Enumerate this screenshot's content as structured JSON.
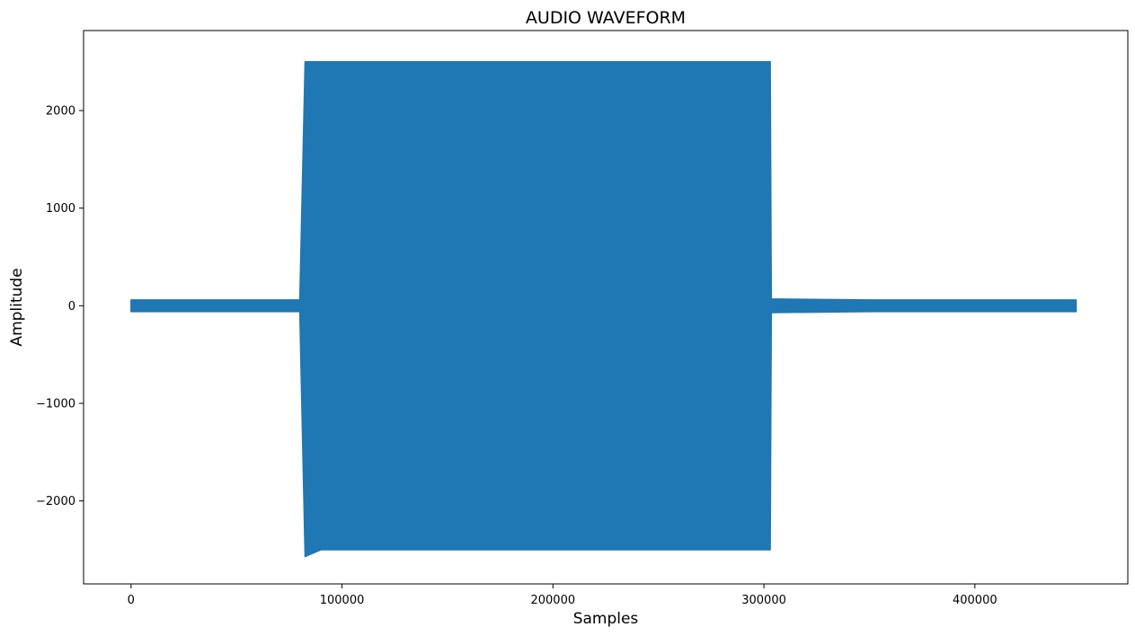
{
  "chart_data": {
    "type": "area",
    "title": "AUDIO WAVEFORM",
    "xlabel": "Samples",
    "ylabel": "Amplitude",
    "xlim": [
      -22500,
      472500
    ],
    "ylim": [
      -2850,
      2820
    ],
    "xticks": [
      0,
      100000,
      200000,
      300000,
      400000
    ],
    "xtick_labels": [
      "0",
      "100000",
      "200000",
      "300000",
      "400000"
    ],
    "yticks": [
      -2000,
      -1000,
      0,
      1000,
      2000
    ],
    "ytick_labels": [
      "−2000",
      "−1000",
      "0",
      "1000",
      "2000"
    ],
    "grid": false,
    "legend": "none",
    "series": [
      {
        "color": "#1f77b4",
        "envelope": {
          "x": [
            0,
            80000,
            82500,
            90000,
            150000,
            250000,
            303000,
            303500,
            350000,
            448000
          ],
          "upper": [
            60,
            60,
            2500,
            2500,
            2500,
            2500,
            2500,
            70,
            60,
            60
          ],
          "lower": [
            -60,
            -60,
            -2570,
            -2500,
            -2500,
            -2500,
            -2500,
            -70,
            -60,
            -60
          ]
        }
      }
    ]
  }
}
